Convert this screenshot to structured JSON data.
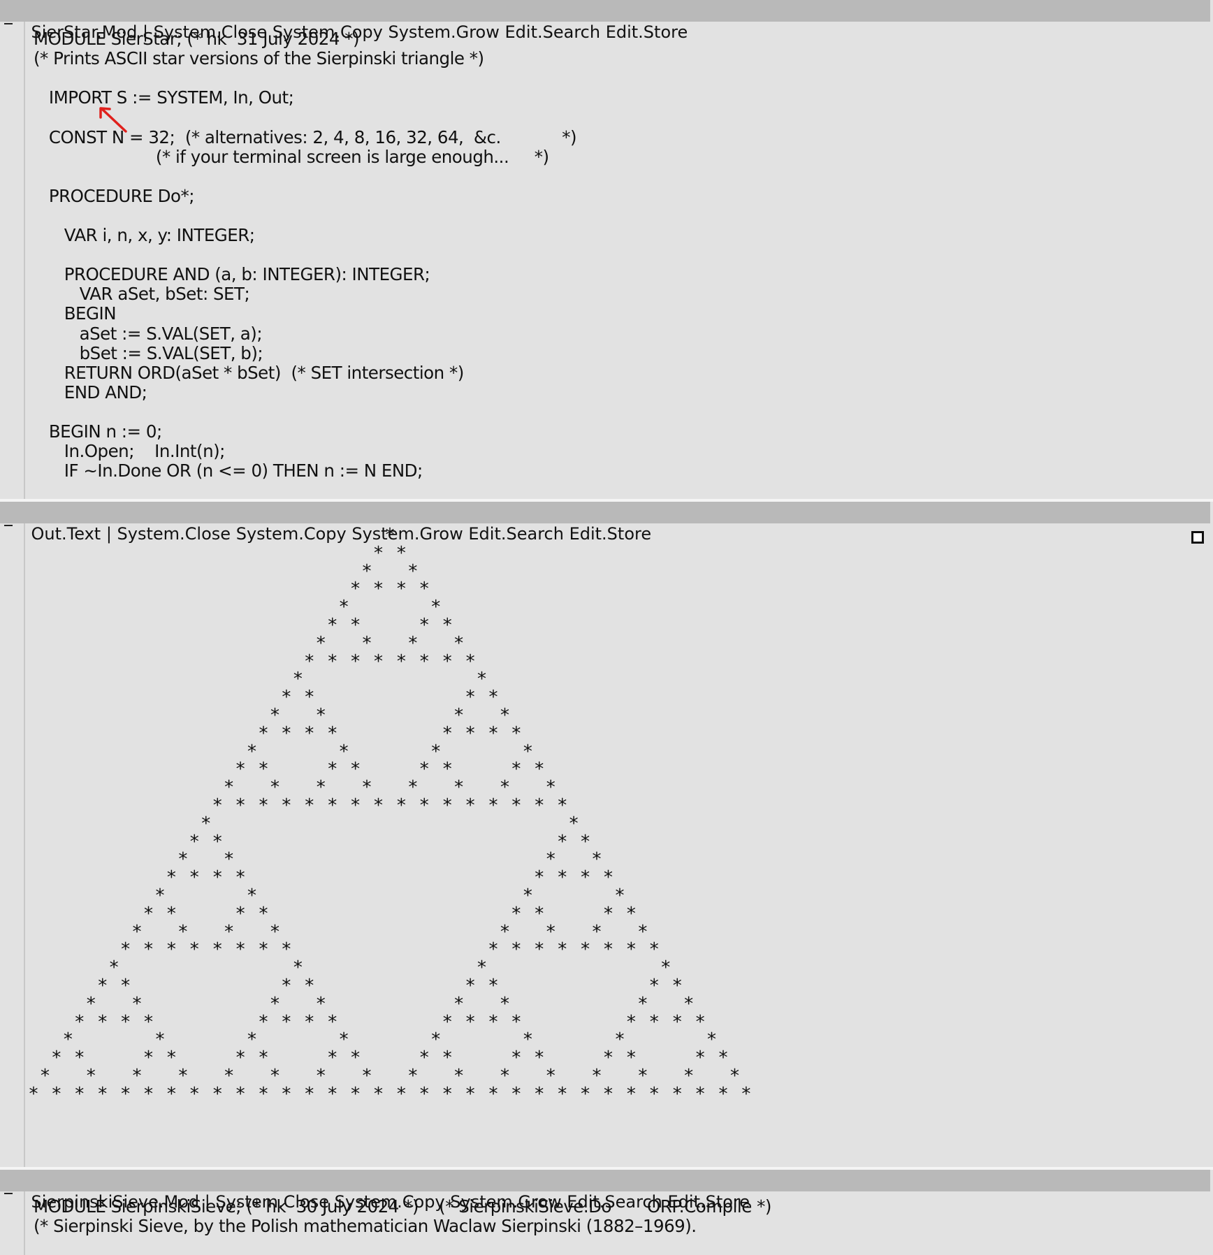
{
  "viewers": [
    {
      "name": "SierStar.Mod",
      "commands": [
        "System.Close",
        "System.Copy",
        "System.Grow",
        "Edit.Search",
        "Edit.Store"
      ],
      "lines": [
        "MODULE SierStar; (* hk  31 July 2024 *)",
        "(* Prints ASCII star versions of the Sierpinski triangle *)",
        "",
        "   IMPORT S := SYSTEM, In, Out;",
        "",
        "   CONST N = 32;  (* alternatives: 2, 4, 8, 16, 32, 64,  &c.            *)",
        "                        (* if your terminal screen is large enough...     *)",
        "",
        "   PROCEDURE Do*;",
        "",
        "      VAR i, n, x, y: INTEGER;",
        "",
        "      PROCEDURE AND (a, b: INTEGER): INTEGER;",
        "         VAR aSet, bSet: SET;",
        "      BEGIN",
        "         aSet := S.VAL(SET, a);",
        "         bSet := S.VAL(SET, b);",
        "      RETURN ORD(aSet * bSet)  (* SET intersection *)",
        "      END AND;",
        "",
        "   BEGIN n := 0;",
        "      In.Open;    In.Int(n);",
        "      IF ~In.Done OR (n <= 0) THEN n := N END;"
      ]
    },
    {
      "name": "Out.Text",
      "commands": [
        "System.Close",
        "System.Copy",
        "System.Grow",
        "Edit.Search",
        "Edit.Store"
      ],
      "star_rows": 32,
      "star_glyph": "*"
    },
    {
      "name": "SierpinskiSieve.Mod",
      "commands": [
        "System.Close",
        "System.Copy",
        "System.Grow",
        "Edit.Search",
        "Edit.Store"
      ],
      "lines": [
        "MODULE SierpinskiSieve; (* hk  30 July 2024 *)    (* SierpinskiSieve.Do       ORP.Compile *)",
        "(* Sierpinski Sieve, by the Polish mathematician Waclaw Sierpinski (1882–1969)."
      ]
    }
  ],
  "colors": {
    "titlebar": "#b9b9b9",
    "background": "#e2e2e2",
    "arrow": "#e0201c"
  }
}
